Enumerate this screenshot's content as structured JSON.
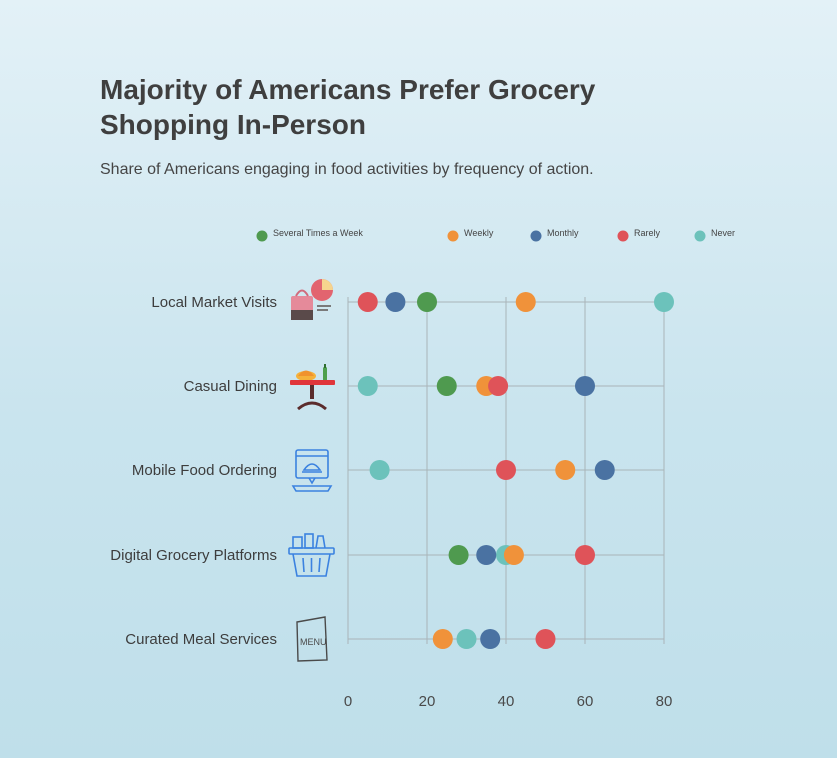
{
  "header": {
    "title": "Majority of Americans Prefer Grocery Shopping In-Person",
    "subtitle": "Share of Americans engaging in food activities by frequency of action."
  },
  "chart_data": {
    "type": "scatter",
    "title": "Majority of Americans Prefer Grocery Shopping In-Person",
    "subtitle": "Share of Americans engaging in food activities by frequency of action.",
    "categories": [
      "Local Market Visits",
      "Casual Dining",
      "Mobile Food Ordering",
      "Digital Grocery Platforms",
      "Curated Meal Services"
    ],
    "category_icons": [
      "market-bag-icon",
      "dining-table-icon",
      "laptop-order-icon",
      "grocery-basket-icon",
      "menu-card-icon"
    ],
    "xlim": [
      0,
      80
    ],
    "xticks": [
      0,
      20,
      40,
      60,
      80
    ],
    "grid": true,
    "legend_position": "top",
    "series": [
      {
        "name": "Several Times a Week",
        "color": "#4f9a4f",
        "values": [
          20,
          25,
          null,
          28,
          null
        ]
      },
      {
        "name": "Weekly",
        "color": "#f0923a",
        "values": [
          45,
          35,
          55,
          42,
          24
        ]
      },
      {
        "name": "Monthly",
        "color": "#4a72a2",
        "values": [
          12,
          60,
          65,
          35,
          36
        ]
      },
      {
        "name": "Rarely",
        "color": "#df5359",
        "values": [
          5,
          38,
          40,
          60,
          50
        ]
      },
      {
        "name": "Never",
        "color": "#6cc2bb",
        "values": [
          80,
          5,
          8,
          40,
          30
        ]
      }
    ]
  }
}
